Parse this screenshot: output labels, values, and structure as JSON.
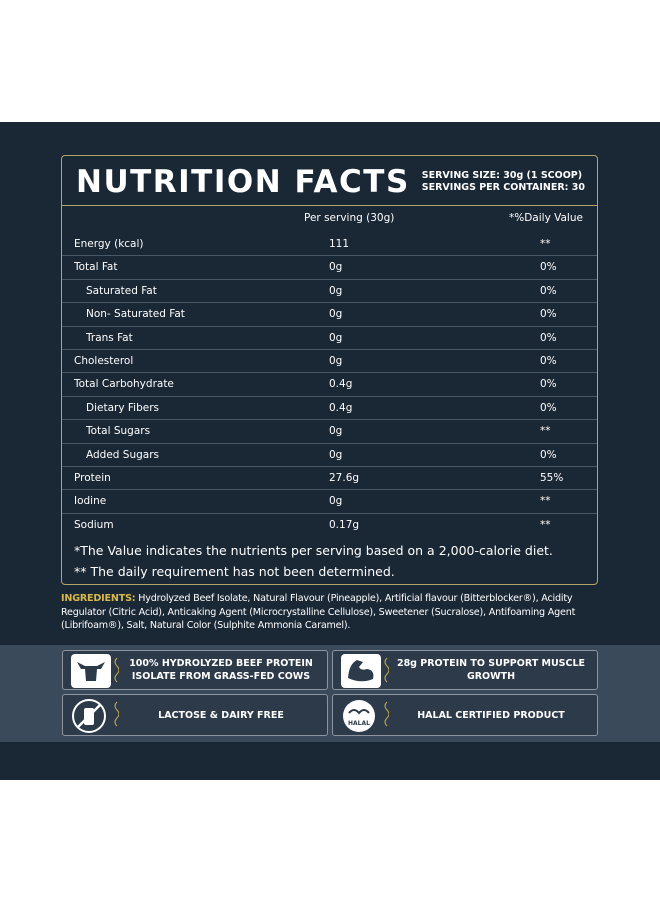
{
  "header": {
    "title": "NUTRITION FACTS",
    "serving_size": "SERVING SIZE: 30g (1 SCOOP)",
    "servings_per_container": "SERVINGS PER CONTAINER: 30"
  },
  "table": {
    "columns": [
      "Per serving (30g)",
      "*%Daily Value"
    ],
    "rows": [
      {
        "name": "Energy (kcal)",
        "amount": "111",
        "dv": "**"
      },
      {
        "name": "Total Fat",
        "amount": "0g",
        "dv": "0%",
        "subrows": [
          {
            "name": "Saturated Fat",
            "amount": "0g",
            "dv": "0%"
          },
          {
            "name": "Non- Saturated Fat",
            "amount": "0g",
            "dv": "0%"
          },
          {
            "name": "Trans Fat",
            "amount": "0g",
            "dv": "0%"
          }
        ]
      },
      {
        "name": "Cholesterol",
        "amount": "0g",
        "dv": "0%"
      },
      {
        "name": "Total Carbohydrate",
        "amount": "0.4g",
        "dv": "0%",
        "subrows": [
          {
            "name": "Dietary Fibers",
            "amount": "0.4g",
            "dv": "0%"
          },
          {
            "name": "Total Sugars",
            "amount": "0g",
            "dv": "**"
          },
          {
            "name": "Added Sugars",
            "amount": "0g",
            "dv": "0%"
          }
        ]
      },
      {
        "name": "Protein",
        "amount": "27.6g",
        "dv": "55%"
      },
      {
        "name": "Iodine",
        "amount": "0g",
        "dv": "**"
      },
      {
        "name": "Sodium",
        "amount": "0.17g",
        "dv": "**"
      }
    ]
  },
  "footnotes": [
    "*The Value indicates the nutrients per serving based on a 2,000-calorie diet.",
    "** The daily requirement has not been determined."
  ],
  "ingredients": {
    "label": "INGREDIENTS:",
    "text": "Hydrolyzed Beef Isolate, Natural Flavour (Pineapple), Artificial flavour (Bitterblocker®), Acidity Regulator (Citric Acid), Anticaking Agent (Microcrystalline Cellulose), Sweetener (Sucralose), Antifoaming Agent (Librifoam®), Salt, Natural Color (Sulphite Ammonia Caramel)."
  },
  "features": [
    "100% HYDROLYZED BEEF PROTEIN ISOLATE FROM GRASS-FED COWS",
    "28g PROTEIN TO SUPPORT MUSCLE GROWTH",
    "LACTOSE & DAIRY FREE",
    "HALAL CERTIFIED PRODUCT"
  ],
  "halal_badge": "HALAL"
}
